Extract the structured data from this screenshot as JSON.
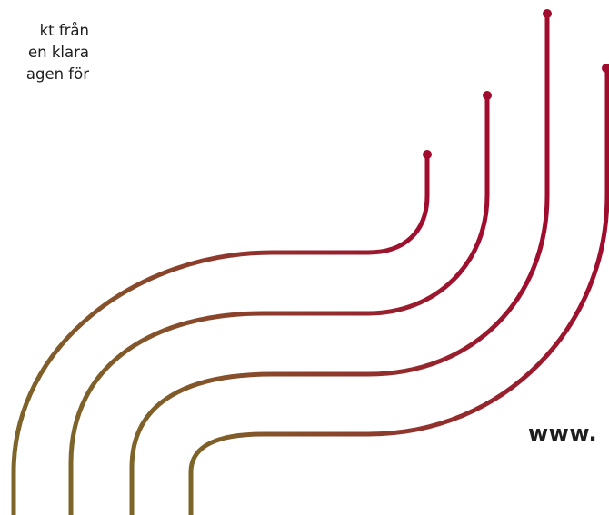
{
  "text_block": {
    "lines": [
      "kt från",
      "en klara",
      "agen för"
    ]
  },
  "website": {
    "text": "www."
  },
  "colors": {
    "line_start": "#7d6429",
    "line_end": "#a00c2e",
    "dot": "#a00c2e",
    "text": "#1e1e1e"
  }
}
